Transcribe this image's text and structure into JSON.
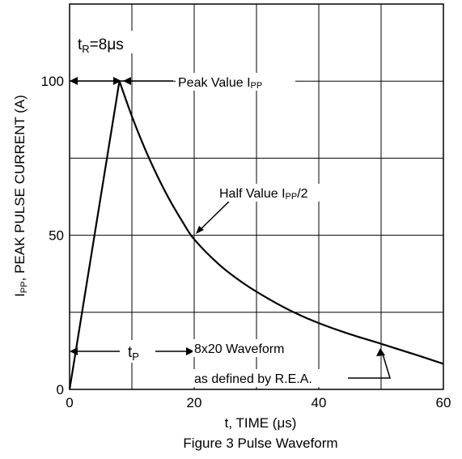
{
  "chart_data": {
    "type": "line",
    "title": "",
    "xlabel": "t, TIME (μs)",
    "ylabel": {
      "prefix": "I",
      "sub": "PP",
      "rest": ", PEAK PULSE CURRENT (A)"
    },
    "caption": "Figure 3 Pulse Waveform",
    "xlim": [
      0,
      60
    ],
    "ylim": [
      0,
      125
    ],
    "x_ticks": [
      0,
      20,
      40,
      60
    ],
    "y_ticks": [
      0,
      50,
      100
    ],
    "x_gridlines": [
      10,
      20,
      30,
      40,
      50,
      60
    ],
    "y_gridlines": [
      25,
      50,
      75,
      100
    ],
    "grid": true,
    "series": [
      {
        "x": [
          0,
          8,
          10,
          12,
          14,
          16,
          18,
          20,
          24,
          28,
          32,
          36,
          40,
          45,
          50,
          55,
          60
        ],
        "y": [
          0,
          100,
          88.6,
          78.5,
          69.6,
          61.7,
          54.8,
          48.7,
          40.5,
          34.3,
          29.3,
          25.0,
          21.5,
          17.9,
          14.8,
          11.6,
          8.3
        ]
      }
    ],
    "annotations": {
      "rise": {
        "base": "t",
        "sub": "R",
        "rest": "=8μs"
      },
      "peak": {
        "text": "Peak Value I",
        "sub": "PP"
      },
      "half": {
        "text": "Half Value I",
        "sub": "PP",
        "rest": "/2"
      },
      "pulse": {
        "base": "t",
        "sub": "P"
      },
      "waveform": "8x20 Waveform",
      "defined": "as defined by R.E.A."
    }
  }
}
